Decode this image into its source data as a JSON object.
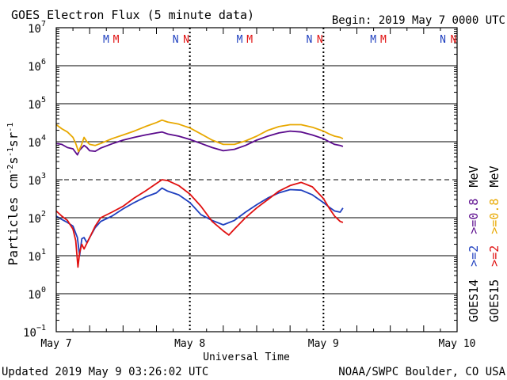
{
  "header": {
    "title": "GOES Electron Flux (5 minute data)",
    "begin": "Begin: 2019 May 7 0000 UTC"
  },
  "footer": {
    "updated": "Updated 2019 May  9 03:26:02 UTC",
    "credit": "NOAA/SWPC Boulder, CO USA"
  },
  "colors": {
    "goes14_2mev": "#1f3fbf",
    "goes15_2mev": "#e01010",
    "goes14_08mev": "#5a0a8c",
    "goes15_08mev": "#e8a800",
    "grid": "#000000"
  },
  "chart_data": {
    "type": "line",
    "title": "GOES Electron Flux (5 minute data)",
    "xlabel": "Universal Time",
    "ylabel_parts": {
      "base": "Particles cm",
      "e1": "-2",
      "s": "s",
      "e2": "-1",
      "sr": "sr",
      "e3": "-1"
    },
    "x_unit": "hours since 2019 May 7 0000 UTC",
    "xlim": [
      0,
      72
    ],
    "x_ticks": [
      {
        "x": 0,
        "label": "May 7"
      },
      {
        "x": 24,
        "label": "May 8"
      },
      {
        "x": 48,
        "label": "May 9"
      },
      {
        "x": 72,
        "label": "May 10"
      }
    ],
    "day_boundaries": [
      24,
      48
    ],
    "y_scale": "log",
    "ylim_exp": [
      -1,
      7
    ],
    "y_tick_labels": [
      {
        "exp": 7,
        "base": "10",
        "sup": "7"
      },
      {
        "exp": 6,
        "base": "10",
        "sup": "6"
      },
      {
        "exp": 5,
        "base": "10",
        "sup": "5"
      },
      {
        "exp": 4,
        "base": "10",
        "sup": "4"
      },
      {
        "exp": 3,
        "base": "10",
        "sup": "3"
      },
      {
        "exp": 2,
        "base": "10",
        "sup": "2"
      },
      {
        "exp": 1,
        "base": "10",
        "sup": "1"
      },
      {
        "exp": 0,
        "base": "10",
        "sup": "0"
      },
      {
        "exp": -1,
        "base": "10",
        "sup": "−1"
      }
    ],
    "threshold_exp": 3,
    "mn_markers": [
      {
        "x": 9.8,
        "text": "M",
        "sat": "goes14"
      },
      {
        "x": 11.6,
        "text": "M",
        "sat": "goes15"
      },
      {
        "x": 22.3,
        "text": "N",
        "sat": "goes14"
      },
      {
        "x": 24.2,
        "text": "N",
        "sat": "goes15"
      },
      {
        "x": 33.8,
        "text": "M",
        "sat": "goes14"
      },
      {
        "x": 35.6,
        "text": "M",
        "sat": "goes15"
      },
      {
        "x": 46.3,
        "text": "N",
        "sat": "goes14"
      },
      {
        "x": 48.2,
        "text": "N",
        "sat": "goes15"
      },
      {
        "x": 57.8,
        "text": "M",
        "sat": "goes14"
      },
      {
        "x": 59.6,
        "text": "M",
        "sat": "goes15"
      },
      {
        "x": 70.3,
        "text": "N",
        "sat": "goes14"
      },
      {
        "x": 72.2,
        "text": "N",
        "sat": "goes15"
      }
    ],
    "legend": [
      {
        "text": "GOES14",
        "color_key": "grid"
      },
      {
        "text": "GOES15",
        "color_key": "grid"
      },
      {
        "text": ">=2",
        "color_key": "goes14_2mev"
      },
      {
        "text": ">=2",
        "color_key": "goes15_2mev"
      },
      {
        "text": ">=0.8",
        "color_key": "goes14_08mev"
      },
      {
        "text": ">=0.8",
        "color_key": "goes15_08mev"
      },
      {
        "text": "MeV",
        "color_key": "grid"
      },
      {
        "text": "MeV",
        "color_key": "grid"
      }
    ],
    "series": [
      {
        "name": "GOES14 >=0.8 MeV",
        "color_key": "goes14_08mev",
        "points": [
          [
            0,
            9000
          ],
          [
            1,
            8500
          ],
          [
            2,
            7000
          ],
          [
            3,
            6500
          ],
          [
            3.8,
            4500
          ],
          [
            4.2,
            6000
          ],
          [
            5,
            8000
          ],
          [
            5.5,
            7000
          ],
          [
            6,
            5800
          ],
          [
            7,
            5600
          ],
          [
            8,
            6800
          ],
          [
            10,
            8800
          ],
          [
            12,
            11000
          ],
          [
            14,
            13000
          ],
          [
            16,
            15000
          ],
          [
            18,
            17000
          ],
          [
            19,
            18000
          ],
          [
            20,
            16000
          ],
          [
            22,
            14000
          ],
          [
            24,
            11500
          ],
          [
            26,
            9000
          ],
          [
            28,
            7000
          ],
          [
            30,
            5800
          ],
          [
            32,
            6300
          ],
          [
            34,
            8000
          ],
          [
            36,
            11000
          ],
          [
            38,
            14000
          ],
          [
            40,
            17000
          ],
          [
            42,
            19000
          ],
          [
            44,
            18000
          ],
          [
            46,
            15000
          ],
          [
            48,
            12000
          ],
          [
            49,
            10000
          ],
          [
            50,
            8500
          ],
          [
            51,
            8000
          ],
          [
            51.5,
            7500
          ]
        ]
      },
      {
        "name": "GOES15 >=0.8 MeV",
        "color_key": "goes15_08mev",
        "points": [
          [
            0,
            28000
          ],
          [
            1,
            22000
          ],
          [
            2,
            18000
          ],
          [
            3,
            13000
          ],
          [
            3.5,
            9000
          ],
          [
            4,
            5500
          ],
          [
            4.5,
            8000
          ],
          [
            5,
            13000
          ],
          [
            5.5,
            10000
          ],
          [
            6,
            8500
          ],
          [
            7,
            8000
          ],
          [
            8,
            9000
          ],
          [
            10,
            12000
          ],
          [
            12,
            15000
          ],
          [
            14,
            19000
          ],
          [
            16,
            25000
          ],
          [
            18,
            32000
          ],
          [
            19,
            37000
          ],
          [
            20,
            33000
          ],
          [
            22,
            29000
          ],
          [
            24,
            23000
          ],
          [
            26,
            16000
          ],
          [
            28,
            11000
          ],
          [
            30,
            8500
          ],
          [
            32,
            8500
          ],
          [
            34,
            10500
          ],
          [
            36,
            14000
          ],
          [
            38,
            20000
          ],
          [
            40,
            25000
          ],
          [
            42,
            28000
          ],
          [
            44,
            28000
          ],
          [
            46,
            24000
          ],
          [
            48,
            19000
          ],
          [
            49,
            16000
          ],
          [
            50,
            14000
          ],
          [
            51,
            13000
          ],
          [
            51.5,
            12000
          ]
        ]
      },
      {
        "name": "GOES14 >=2 MeV",
        "color_key": "goes14_2mev",
        "points": [
          [
            0,
            110
          ],
          [
            1,
            90
          ],
          [
            2,
            75
          ],
          [
            3,
            60
          ],
          [
            3.8,
            30
          ],
          [
            4.2,
            10
          ],
          [
            4.6,
            28
          ],
          [
            5,
            30
          ],
          [
            5.5,
            22
          ],
          [
            6,
            30
          ],
          [
            7,
            55
          ],
          [
            8,
            80
          ],
          [
            10,
            110
          ],
          [
            12,
            170
          ],
          [
            14,
            250
          ],
          [
            16,
            350
          ],
          [
            18,
            450
          ],
          [
            19,
            600
          ],
          [
            20,
            500
          ],
          [
            22,
            400
          ],
          [
            24,
            250
          ],
          [
            26,
            120
          ],
          [
            28,
            85
          ],
          [
            30,
            65
          ],
          [
            32,
            85
          ],
          [
            34,
            140
          ],
          [
            36,
            220
          ],
          [
            38,
            330
          ],
          [
            40,
            450
          ],
          [
            42,
            550
          ],
          [
            44,
            530
          ],
          [
            46,
            400
          ],
          [
            48,
            250
          ],
          [
            49,
            190
          ],
          [
            50,
            150
          ],
          [
            51,
            140
          ],
          [
            51.5,
            180
          ]
        ]
      },
      {
        "name": "GOES15 >=2 MeV",
        "color_key": "goes15_2mev",
        "points": [
          [
            0,
            150
          ],
          [
            1,
            110
          ],
          [
            2,
            85
          ],
          [
            3,
            50
          ],
          [
            3.5,
            25
          ],
          [
            3.9,
            5
          ],
          [
            4.2,
            12
          ],
          [
            4.6,
            20
          ],
          [
            5,
            15
          ],
          [
            6,
            30
          ],
          [
            7,
            60
          ],
          [
            8,
            100
          ],
          [
            10,
            140
          ],
          [
            12,
            200
          ],
          [
            14,
            330
          ],
          [
            16,
            500
          ],
          [
            18,
            800
          ],
          [
            19,
            1000
          ],
          [
            20,
            950
          ],
          [
            22,
            700
          ],
          [
            24,
            420
          ],
          [
            26,
            200
          ],
          [
            28,
            80
          ],
          [
            30,
            45
          ],
          [
            31,
            35
          ],
          [
            32,
            50
          ],
          [
            34,
            100
          ],
          [
            36,
            180
          ],
          [
            38,
            300
          ],
          [
            40,
            500
          ],
          [
            42,
            700
          ],
          [
            44,
            850
          ],
          [
            46,
            650
          ],
          [
            48,
            320
          ],
          [
            49,
            180
          ],
          [
            50,
            110
          ],
          [
            51,
            80
          ],
          [
            51.5,
            75
          ]
        ]
      }
    ]
  }
}
